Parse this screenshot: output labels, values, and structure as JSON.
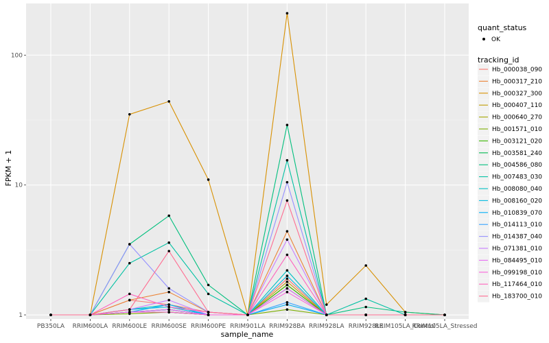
{
  "chart_data": {
    "type": "line",
    "xlabel": "sample_name",
    "ylabel": "FPKM + 1",
    "y_scale": "log10",
    "ylim": [
      0.93,
      250
    ],
    "categories": [
      "PB350LA",
      "RRIM600LA",
      "RRIM600LE",
      "RRIM600SE",
      "RRIM600PE",
      "RRIM901LA",
      "RRIM928BA",
      "RRIM928LA",
      "RRIM928LE",
      "RRIM105LA_Control",
      "RRIM105LA_Stressed"
    ],
    "y_ticks": [
      1,
      10,
      100
    ],
    "y_tick_labels": [
      "1",
      "10",
      "100"
    ],
    "legend_quant": {
      "title": "quant_status",
      "items": [
        "OK"
      ]
    },
    "legend_series_title": "tracking_id",
    "series": [
      {
        "name": "Hb_000038_090",
        "color": "#F8766D",
        "values": [
          1.0,
          1.0,
          1.3,
          1.2,
          1.05,
          1.0,
          1.9,
          1.0,
          1.0,
          1.0,
          1.0
        ]
      },
      {
        "name": "Hb_000317_210",
        "color": "#EB8335",
        "values": [
          1.0,
          1.0,
          1.3,
          1.5,
          1.05,
          1.0,
          4.4,
          1.0,
          1.0,
          1.0,
          1.0
        ]
      },
      {
        "name": "Hb_000327_300",
        "color": "#D89000",
        "values": [
          1.0,
          1.0,
          35.0,
          44.0,
          11.0,
          1.0,
          210.0,
          1.2,
          2.4,
          1.05,
          1.0
        ]
      },
      {
        "name": "Hb_000407_110",
        "color": "#C09B00",
        "values": [
          1.0,
          1.0,
          1.05,
          1.1,
          1.0,
          1.0,
          1.8,
          1.0,
          1.0,
          1.0,
          1.0
        ]
      },
      {
        "name": "Hb_000640_270",
        "color": "#A3A500",
        "values": [
          1.0,
          1.0,
          1.05,
          1.05,
          1.0,
          1.0,
          1.7,
          1.0,
          1.0,
          1.0,
          1.0
        ]
      },
      {
        "name": "Hb_001571_010",
        "color": "#7CAE00",
        "values": [
          1.0,
          1.0,
          1.02,
          1.05,
          1.0,
          1.0,
          1.1,
          1.0,
          1.0,
          1.0,
          1.0
        ]
      },
      {
        "name": "Hb_003121_020",
        "color": "#39B600",
        "values": [
          1.0,
          1.0,
          1.05,
          1.05,
          1.0,
          1.0,
          1.7,
          1.0,
          1.0,
          1.0,
          1.0
        ]
      },
      {
        "name": "Hb_003581_240",
        "color": "#00BB4E",
        "values": [
          1.0,
          1.0,
          1.05,
          1.1,
          1.0,
          1.0,
          1.6,
          1.0,
          1.0,
          1.0,
          1.0
        ]
      },
      {
        "name": "Hb_004586_080",
        "color": "#00BF7D",
        "values": [
          1.0,
          1.0,
          3.5,
          5.8,
          1.7,
          1.0,
          29.0,
          1.0,
          1.15,
          1.05,
          1.0
        ]
      },
      {
        "name": "Hb_007483_030",
        "color": "#00C1A3",
        "values": [
          1.0,
          1.0,
          2.5,
          3.6,
          1.45,
          1.0,
          15.5,
          1.0,
          1.33,
          1.0,
          1.0
        ]
      },
      {
        "name": "Hb_008080_040",
        "color": "#00BFC4",
        "values": [
          1.0,
          1.0,
          1.1,
          1.2,
          1.0,
          1.0,
          2.2,
          1.0,
          1.0,
          1.0,
          1.0
        ]
      },
      {
        "name": "Hb_008160_020",
        "color": "#00BAE0",
        "values": [
          1.0,
          1.0,
          1.1,
          1.15,
          1.0,
          1.0,
          2.0,
          1.0,
          1.0,
          1.0,
          1.0
        ]
      },
      {
        "name": "Hb_010839_070",
        "color": "#00B0F6",
        "values": [
          1.0,
          1.0,
          1.05,
          1.2,
          1.0,
          1.0,
          1.2,
          1.0,
          1.0,
          1.0,
          1.0
        ]
      },
      {
        "name": "Hb_014113_010",
        "color": "#35A2FF",
        "values": [
          1.0,
          1.0,
          1.05,
          1.1,
          1.0,
          1.0,
          1.25,
          1.0,
          1.0,
          1.0,
          1.0
        ]
      },
      {
        "name": "Hb_014387_040",
        "color": "#9590FF",
        "values": [
          1.0,
          1.0,
          3.5,
          1.6,
          1.05,
          1.0,
          10.5,
          1.0,
          1.0,
          1.0,
          1.0
        ]
      },
      {
        "name": "Hb_071381_010",
        "color": "#C77CFF",
        "values": [
          1.0,
          1.0,
          1.1,
          1.3,
          1.0,
          1.0,
          3.8,
          1.0,
          1.0,
          1.0,
          1.0
        ]
      },
      {
        "name": "Hb_084495_010",
        "color": "#E76BF3",
        "values": [
          1.0,
          1.0,
          1.05,
          1.1,
          1.0,
          1.0,
          1.6,
          1.0,
          1.0,
          1.0,
          1.0
        ]
      },
      {
        "name": "Hb_099198_010",
        "color": "#FA62DB",
        "values": [
          1.0,
          1.0,
          1.05,
          1.05,
          1.0,
          1.0,
          1.5,
          1.0,
          1.0,
          1.0,
          1.0
        ]
      },
      {
        "name": "Hb_117464_010",
        "color": "#FF62BC",
        "values": [
          1.0,
          1.0,
          1.45,
          1.15,
          1.05,
          1.0,
          2.9,
          1.0,
          1.0,
          1.0,
          1.0
        ]
      },
      {
        "name": "Hb_183700_010",
        "color": "#FF6C91",
        "values": [
          1.0,
          1.0,
          1.1,
          3.1,
          1.05,
          1.0,
          7.6,
          1.0,
          1.0,
          1.0,
          1.0
        ]
      }
    ]
  }
}
